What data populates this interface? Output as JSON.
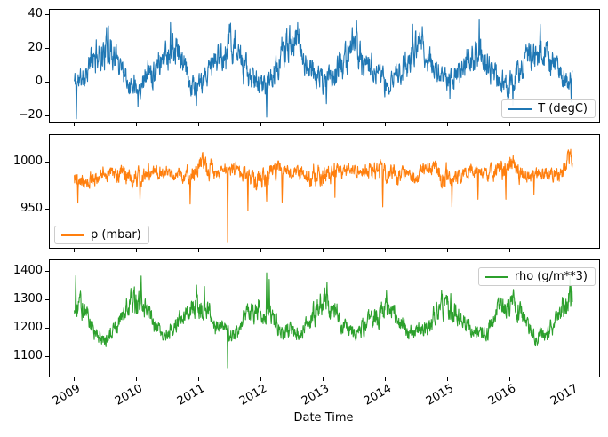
{
  "figure": {
    "background": "#ffffff",
    "text_color": "#000000"
  },
  "x_axis": {
    "label": "Date Time",
    "tick_labels": [
      "2009",
      "2010",
      "2011",
      "2012",
      "2013",
      "2014",
      "2015",
      "2016",
      "2017"
    ],
    "tick_values": [
      2009,
      2010,
      2011,
      2012,
      2013,
      2014,
      2015,
      2016,
      2017
    ],
    "xlim": [
      2008.61,
      2017.45
    ],
    "tick_rotation_deg": 30
  },
  "chart_data": [
    {
      "type": "line",
      "name": "T (degC)",
      "color": "#1f77b4",
      "legend": {
        "label": "T (degC)",
        "position": "lower-right"
      },
      "ylim": [
        -23.7,
        42.6
      ],
      "yticks": [
        {
          "value": 40,
          "label": "40"
        },
        {
          "value": 20,
          "label": "20"
        },
        {
          "value": 0,
          "label": "0"
        },
        {
          "value": -20,
          "label": "−20"
        }
      ],
      "x_range_years": [
        2009.005,
        2017.02
      ],
      "monthly_center": [
        0,
        0.5,
        4,
        9,
        14,
        17.5,
        19.5,
        19.5,
        15,
        10,
        4.5,
        1.5
      ],
      "monthly_halfwidth": [
        8,
        8,
        8,
        9,
        10,
        10.5,
        11,
        11,
        9.5,
        8.5,
        7.5,
        7.5
      ],
      "extreme_points": [
        [
          2009.04,
          -22
        ],
        [
          2010.03,
          -15
        ],
        [
          2010.97,
          -14
        ],
        [
          2012.1,
          -21
        ],
        [
          2013.06,
          -13
        ],
        [
          2014.0,
          -9
        ],
        [
          2015.05,
          -10
        ],
        [
          2016.06,
          -14
        ],
        [
          2017.0,
          -12
        ],
        [
          2009.55,
          33
        ],
        [
          2010.55,
          35
        ],
        [
          2011.5,
          34
        ],
        [
          2012.6,
          35
        ],
        [
          2013.55,
          36
        ],
        [
          2014.45,
          34
        ],
        [
          2015.52,
          37
        ],
        [
          2016.5,
          34
        ]
      ],
      "anchor_offsets": []
    },
    {
      "type": "line",
      "name": "p (mbar)",
      "color": "#ff7f0e",
      "legend": {
        "label": "p (mbar)",
        "position": "lower-left"
      },
      "ylim": [
        908.5,
        1028.3
      ],
      "yticks": [
        {
          "value": 1000,
          "label": "1000"
        },
        {
          "value": 950,
          "label": "950"
        }
      ],
      "x_range_years": [
        2009.005,
        2017.02
      ],
      "monthly_center": [
        989,
        988,
        987,
        987,
        988,
        988,
        988,
        988,
        989,
        989,
        988,
        988
      ],
      "monthly_halfwidth": [
        12,
        11,
        10,
        9,
        8,
        7.5,
        7.5,
        7.5,
        8,
        9,
        11,
        12
      ],
      "extreme_points": [
        [
          2009.06,
          956
        ],
        [
          2010.06,
          960
        ],
        [
          2010.87,
          955
        ],
        [
          2011.47,
          914
        ],
        [
          2011.8,
          948
        ],
        [
          2012.1,
          958
        ],
        [
          2012.35,
          957
        ],
        [
          2013.2,
          962
        ],
        [
          2013.97,
          952
        ],
        [
          2015.08,
          952
        ],
        [
          2015.5,
          960
        ],
        [
          2015.95,
          960
        ],
        [
          2016.4,
          965
        ],
        [
          2016.99,
          1013
        ]
      ],
      "anchor_offsets": [
        [
          2009.0,
          0
        ],
        [
          2016.8,
          0
        ],
        [
          2017.02,
          18
        ]
      ]
    },
    {
      "type": "line",
      "name": "rho (g/m**3)",
      "color": "#2ca02c",
      "legend": {
        "label": "rho (g/m**3)",
        "position": "upper-right"
      },
      "ylim": [
        1028,
        1437.5
      ],
      "yticks": [
        {
          "value": 1400,
          "label": "1400"
        },
        {
          "value": 1300,
          "label": "1300"
        },
        {
          "value": 1200,
          "label": "1200"
        },
        {
          "value": 1100,
          "label": "1100"
        }
      ],
      "x_range_years": [
        2009.005,
        2017.02
      ],
      "monthly_center": [
        1285,
        1278,
        1255,
        1228,
        1200,
        1186,
        1180,
        1182,
        1202,
        1228,
        1258,
        1280
      ],
      "monthly_halfwidth": [
        48,
        45,
        40,
        36,
        33,
        30,
        30,
        30,
        32,
        36,
        42,
        46
      ],
      "extreme_points": [
        [
          2009.03,
          1383
        ],
        [
          2010.08,
          1382
        ],
        [
          2010.97,
          1350
        ],
        [
          2011.1,
          1345
        ],
        [
          2011.47,
          1059
        ],
        [
          2012.1,
          1393
        ],
        [
          2012.14,
          1370
        ],
        [
          2013.07,
          1360
        ],
        [
          2014.03,
          1330
        ],
        [
          2015.06,
          1320
        ],
        [
          2016.07,
          1335
        ],
        [
          2016.98,
          1385
        ]
      ],
      "anchor_offsets": []
    }
  ]
}
